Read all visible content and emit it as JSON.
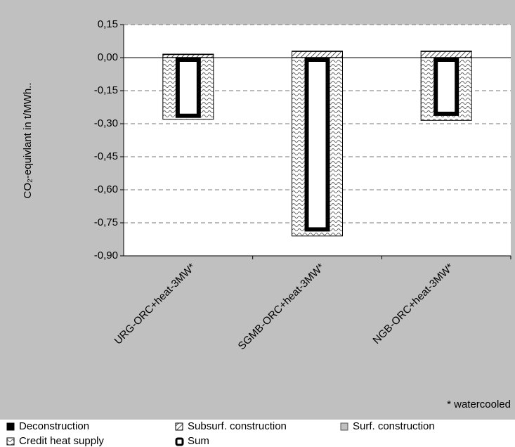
{
  "chart_data": {
    "type": "bar",
    "ylabel": "CO₂-equivlant in t/MWh..",
    "annotation": "* watercooled",
    "categories": [
      "URG-ORC+heat-3MW*",
      "SGMB-ORC+heat-3MW*",
      "NGB-ORC+heat-3MW*"
    ],
    "series": [
      {
        "name": "Deconstruction",
        "color": "#000000",
        "pattern": "solid",
        "values": [
          0.001,
          0.001,
          0.001
        ]
      },
      {
        "name": "Subsurf. construction",
        "color": "#808080",
        "pattern": "hatch",
        "values": [
          0.013,
          0.027,
          0.027
        ]
      },
      {
        "name": "Surf. construction",
        "color": "#c0c0c0",
        "pattern": "solid",
        "values": [
          0.002,
          0.002,
          0.002
        ]
      },
      {
        "name": "Credit heat supply",
        "color": "#808080",
        "pattern": "wave",
        "values": [
          -0.28,
          -0.81,
          -0.285
        ]
      },
      {
        "name": "Sum",
        "color": "#000000",
        "pattern": "outline",
        "values": [
          -0.264,
          -0.78,
          -0.255
        ]
      }
    ],
    "ylim": [
      -0.9,
      0.15
    ],
    "yticks": [
      {
        "value": 0.15,
        "label": "0,15"
      },
      {
        "value": 0,
        "label": "0,00"
      },
      {
        "value": -0.15,
        "label": "-0,15"
      },
      {
        "value": -0.3,
        "label": "-0,30"
      },
      {
        "value": -0.45,
        "label": "-0,45"
      },
      {
        "value": -0.6,
        "label": "-0,60"
      },
      {
        "value": -0.75,
        "label": "-0,75"
      },
      {
        "value": -0.9,
        "label": "-0,90"
      }
    ],
    "grid": true
  }
}
